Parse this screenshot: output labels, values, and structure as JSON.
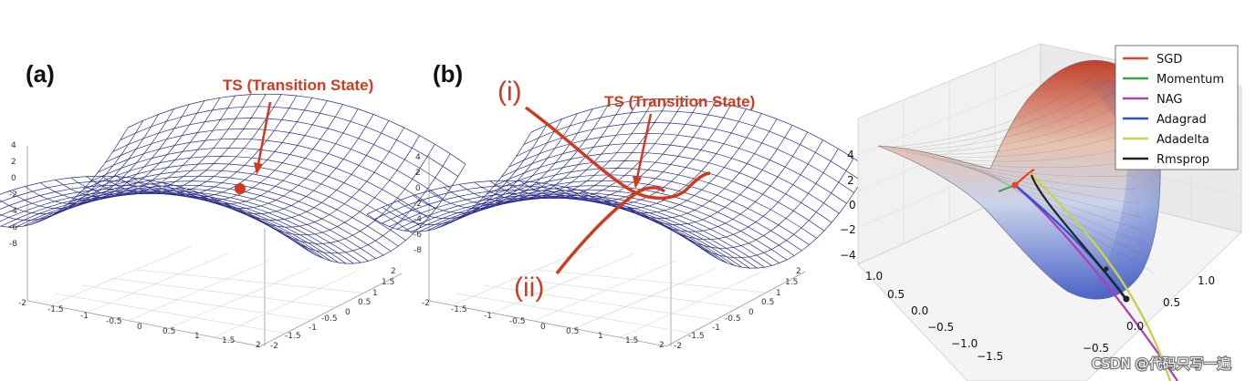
{
  "panel_a": {
    "letter": "(a)",
    "ts_label": "TS (Transition State)",
    "z_ticks": [
      "4",
      "2",
      "0",
      "-2",
      "-4",
      "-6",
      "-8"
    ],
    "x_ticks": [
      "-2",
      "-1.5",
      "-1",
      "-0.5",
      "0",
      "0.5",
      "1",
      "1.5",
      "2"
    ],
    "y_ticks": [
      "2",
      "1.5",
      "1",
      "0.5",
      "0",
      "-0.5",
      "-1",
      "-1.5",
      "-2"
    ]
  },
  "panel_b": {
    "letter": "(b)",
    "ts_label": "TS (Transition State)",
    "path_i": "(i)",
    "path_ii": "(ii)",
    "z_ticks": [
      "4",
      "2",
      "0",
      "-2",
      "-4",
      "-6",
      "-8"
    ],
    "x_ticks": [
      "-2",
      "-1.5",
      "-1",
      "-0.5",
      "0",
      "0.5",
      "1",
      "1.5",
      "2"
    ],
    "y_ticks": [
      "2",
      "1.5",
      "1",
      "0.5",
      "0",
      "-0.5",
      "-1",
      "-1.5",
      "-2"
    ]
  },
  "panel_c": {
    "z_ticks": [
      "4",
      "2",
      "0",
      "−2",
      "−4"
    ],
    "left_ticks": [
      "1.0",
      "0.5",
      "0.0",
      "−0.5",
      "−1.0",
      "−1.5"
    ],
    "right_ticks": [
      "1.0",
      "0.5",
      "0.0",
      "−0.5"
    ],
    "legend": [
      {
        "name": "SGD",
        "color": "#e8412c"
      },
      {
        "name": "Momentum",
        "color": "#3aa04a"
      },
      {
        "name": "NAG",
        "color": "#b23ab8"
      },
      {
        "name": "Adagrad",
        "color": "#2e4fd6"
      },
      {
        "name": "Adadelta",
        "color": "#c8d24a"
      },
      {
        "name": "Rmsprop",
        "color": "#222222"
      }
    ]
  },
  "watermark": "CSDN @代码只写一遍",
  "colors": {
    "annotation": "#d23a1e",
    "mesh": "#2b2f8a"
  }
}
